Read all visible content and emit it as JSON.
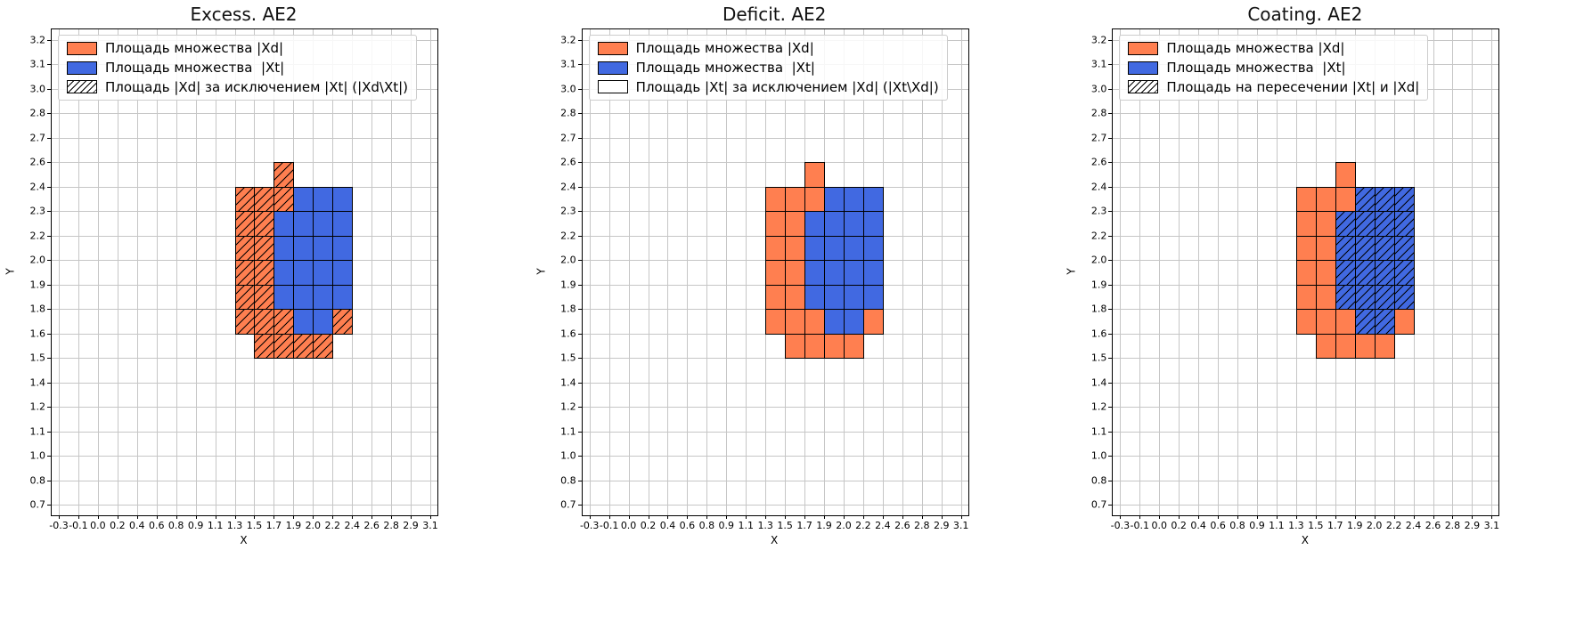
{
  "chart_data": {
    "type": "heatmap",
    "xlabel": "X",
    "ylabel": "Y",
    "x_tick_labels": [
      "-0.3",
      "-0.1",
      "0.0",
      "0.2",
      "0.4",
      "0.6",
      "0.8",
      "0.9",
      "1.1",
      "1.3",
      "1.5",
      "1.7",
      "1.9",
      "2.0",
      "2.2",
      "2.4",
      "2.6",
      "2.8",
      "2.9",
      "3.1"
    ],
    "y_tick_labels_top_to_bottom": [
      "3.2",
      "3.1",
      "3.0",
      "2.8",
      "2.7",
      "2.6",
      "2.4",
      "2.3",
      "2.2",
      "2.0",
      "1.9",
      "1.8",
      "1.6",
      "1.5",
      "1.4",
      "1.2",
      "1.1",
      "1.0",
      "0.8",
      "0.7"
    ],
    "grid": {
      "columns": 19,
      "rows": 19,
      "grid_on": true
    },
    "colors": {
      "xd_fill": "#ff7f50",
      "xt_fill": "#4169e1",
      "cell_edge": "#000000",
      "grid_line": "#c6c6c6",
      "hatch": "#000000"
    },
    "xd_cells_col_row": [
      [
        11,
        5
      ],
      [
        9,
        6
      ],
      [
        10,
        6
      ],
      [
        11,
        6
      ],
      [
        12,
        6
      ],
      [
        13,
        6
      ],
      [
        14,
        6
      ],
      [
        9,
        7
      ],
      [
        10,
        7
      ],
      [
        11,
        7
      ],
      [
        12,
        7
      ],
      [
        13,
        7
      ],
      [
        14,
        7
      ],
      [
        9,
        8
      ],
      [
        10,
        8
      ],
      [
        11,
        8
      ],
      [
        12,
        8
      ],
      [
        13,
        8
      ],
      [
        14,
        8
      ],
      [
        9,
        9
      ],
      [
        10,
        9
      ],
      [
        11,
        9
      ],
      [
        12,
        9
      ],
      [
        13,
        9
      ],
      [
        14,
        9
      ],
      [
        9,
        10
      ],
      [
        10,
        10
      ],
      [
        11,
        10
      ],
      [
        12,
        10
      ],
      [
        13,
        10
      ],
      [
        14,
        10
      ],
      [
        9,
        11
      ],
      [
        10,
        11
      ],
      [
        11,
        11
      ],
      [
        12,
        11
      ],
      [
        13,
        11
      ],
      [
        14,
        11
      ],
      [
        10,
        12
      ],
      [
        11,
        12
      ],
      [
        12,
        12
      ],
      [
        13,
        12
      ]
    ],
    "xt_cells_col_row": [
      [
        12,
        6
      ],
      [
        13,
        6
      ],
      [
        14,
        6
      ],
      [
        11,
        7
      ],
      [
        12,
        7
      ],
      [
        13,
        7
      ],
      [
        14,
        7
      ],
      [
        11,
        8
      ],
      [
        12,
        8
      ],
      [
        13,
        8
      ],
      [
        14,
        8
      ],
      [
        11,
        9
      ],
      [
        12,
        9
      ],
      [
        13,
        9
      ],
      [
        14,
        9
      ],
      [
        11,
        10
      ],
      [
        12,
        10
      ],
      [
        13,
        10
      ],
      [
        14,
        10
      ],
      [
        12,
        11
      ],
      [
        13,
        11
      ]
    ],
    "panels": [
      {
        "title": "Excess. AE2",
        "hatch_rule": "xd_minus_xt",
        "legend": [
          {
            "swatch": "xd",
            "label": "Площадь множества |Xd|"
          },
          {
            "swatch": "xt",
            "label": "Площадь множества  |Xt|"
          },
          {
            "swatch": "hatch",
            "label": "Площадь |Xd| за исключением |Xt| (|Xd\\Xt|)"
          }
        ]
      },
      {
        "title": "Deficit. AE2",
        "hatch_rule": "xt_minus_xd",
        "legend": [
          {
            "swatch": "xd",
            "label": "Площадь множества |Xd|"
          },
          {
            "swatch": "xt",
            "label": "Площадь множества  |Xt|"
          },
          {
            "swatch": "empty",
            "label": "Площадь |Xt| за исключением |Xd| (|Xt\\Xd|)"
          }
        ]
      },
      {
        "title": "Coating. AE2",
        "hatch_rule": "intersection",
        "legend": [
          {
            "swatch": "xd",
            "label": "Площадь множества |Xd|"
          },
          {
            "swatch": "xt",
            "label": "Площадь множества  |Xt|"
          },
          {
            "swatch": "hatch",
            "label": "Площадь на пересечении |Xt| и |Xd|"
          }
        ]
      }
    ]
  }
}
